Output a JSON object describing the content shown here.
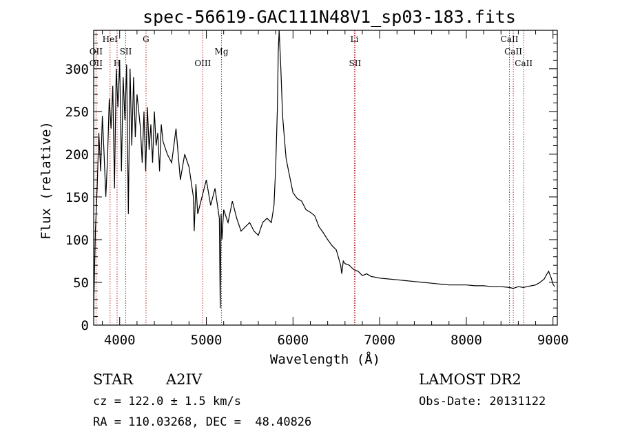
{
  "chart_data": {
    "type": "line",
    "title": "spec-56619-GAC111N48V1_sp03-183.fits",
    "xlabel": "Wavelength (Å)",
    "ylabel": "Flux (relative)",
    "xlim": [
      3700,
      9050
    ],
    "ylim": [
      0,
      345
    ],
    "xticks": [
      4000,
      5000,
      6000,
      7000,
      8000,
      9000
    ],
    "yticks": [
      0,
      50,
      100,
      150,
      200,
      250,
      300
    ],
    "grid": false,
    "series": [
      {
        "x": [
          3700,
          3720,
          3740,
          3760,
          3780,
          3800,
          3820,
          3840,
          3860,
          3880,
          3900,
          3920,
          3940,
          3960,
          3980,
          4000,
          4020,
          4040,
          4060,
          4080,
          4100,
          4120,
          4140,
          4160,
          4180,
          4200,
          4220,
          4240,
          4260,
          4280,
          4300,
          4320,
          4340,
          4360,
          4380,
          4400,
          4420,
          4440,
          4460,
          4480,
          4500,
          4550,
          4600,
          4650,
          4700,
          4750,
          4800,
          4850,
          4860,
          4880,
          4900,
          4950,
          5000,
          5050,
          5100,
          5150,
          5160,
          5170,
          5180,
          5200,
          5250,
          5300,
          5350,
          5400,
          5450,
          5500,
          5550,
          5600,
          5650,
          5700,
          5750,
          5780,
          5800,
          5820,
          5830,
          5840,
          5860,
          5880,
          5900,
          5920,
          5950,
          6000,
          6050,
          6100,
          6150,
          6200,
          6250,
          6300,
          6350,
          6400,
          6450,
          6500,
          6550,
          6563,
          6580,
          6600,
          6650,
          6700,
          6750,
          6800,
          6850,
          6900,
          6950,
          7000,
          7100,
          7200,
          7300,
          7400,
          7500,
          7600,
          7700,
          7800,
          7900,
          8000,
          8100,
          8200,
          8300,
          8400,
          8500,
          8540,
          8600,
          8660,
          8700,
          8750,
          8800,
          8850,
          8900,
          8920,
          8950,
          8980,
          9000,
          9020
        ],
        "y": [
          20,
          110,
          160,
          225,
          180,
          245,
          200,
          150,
          195,
          265,
          230,
          280,
          160,
          300,
          255,
          310,
          180,
          290,
          240,
          305,
          130,
          300,
          210,
          290,
          220,
          270,
          250,
          230,
          190,
          250,
          180,
          255,
          205,
          235,
          190,
          250,
          210,
          225,
          180,
          235,
          215,
          200,
          190,
          230,
          170,
          200,
          185,
          150,
          110,
          165,
          130,
          150,
          170,
          140,
          160,
          125,
          20,
          130,
          100,
          135,
          120,
          145,
          125,
          110,
          115,
          120,
          110,
          105,
          120,
          125,
          120,
          140,
          185,
          255,
          320,
          345,
          300,
          245,
          220,
          195,
          180,
          155,
          148,
          145,
          135,
          132,
          128,
          115,
          108,
          100,
          93,
          88,
          70,
          60,
          75,
          72,
          70,
          65,
          63,
          58,
          60,
          57,
          56,
          55,
          54,
          53,
          52,
          51,
          50,
          49,
          48,
          47,
          47,
          47,
          46,
          46,
          45,
          45,
          44,
          43,
          45,
          44,
          45,
          46,
          47,
          50,
          54,
          58,
          63,
          55,
          48,
          45
        ]
      }
    ],
    "lines": [
      {
        "label": "OII",
        "x": 3727
      },
      {
        "label": "HeI",
        "x": 3889
      },
      {
        "label": "H",
        "x": 3970
      },
      {
        "label": "SII",
        "x": 4070
      },
      {
        "label": "G",
        "x": 4304
      },
      {
        "label": "OIII",
        "x": 4959
      },
      {
        "label": "Mg",
        "x": 5175
      },
      {
        "label": "Li",
        "x": 6708
      },
      {
        "label": "SII",
        "x": 6716
      },
      {
        "label": "CaII",
        "x": 8498
      },
      {
        "label": "CaII",
        "x": 8542
      },
      {
        "label": "CaII",
        "x": 8662
      }
    ],
    "line_labels": [
      {
        "text": "OII",
        "x": 3727,
        "row": 2
      },
      {
        "text": "OII",
        "x": 3727,
        "row": 3
      },
      {
        "text": "HeI",
        "x": 3889,
        "row": 1
      },
      {
        "text": "H",
        "x": 3970,
        "row": 3
      },
      {
        "text": "SII",
        "x": 4070,
        "row": 2
      },
      {
        "text": "G",
        "x": 4304,
        "row": 1
      },
      {
        "text": "OIII",
        "x": 4959,
        "row": 3
      },
      {
        "text": "Mg",
        "x": 5175,
        "row": 2
      },
      {
        "text": "Li",
        "x": 6708,
        "row": 1
      },
      {
        "text": "SII",
        "x": 6716,
        "row": 3
      },
      {
        "text": "CaII",
        "x": 8498,
        "row": 1
      },
      {
        "text": "CaII",
        "x": 8542,
        "row": 2
      },
      {
        "text": "CaII",
        "x": 8662,
        "row": 3
      }
    ]
  },
  "info": {
    "class_label": "STAR",
    "subclass": "A2IV",
    "survey": "LAMOST DR2",
    "cz": "cz = 122.0 ± 1.5 km/s",
    "obs_date": "Obs-Date: 20131122",
    "coords": "RA = 110.03268, DEC =  48.40826"
  },
  "colors": {
    "spectrum": "#000000",
    "marker_lines": "#b22222"
  }
}
